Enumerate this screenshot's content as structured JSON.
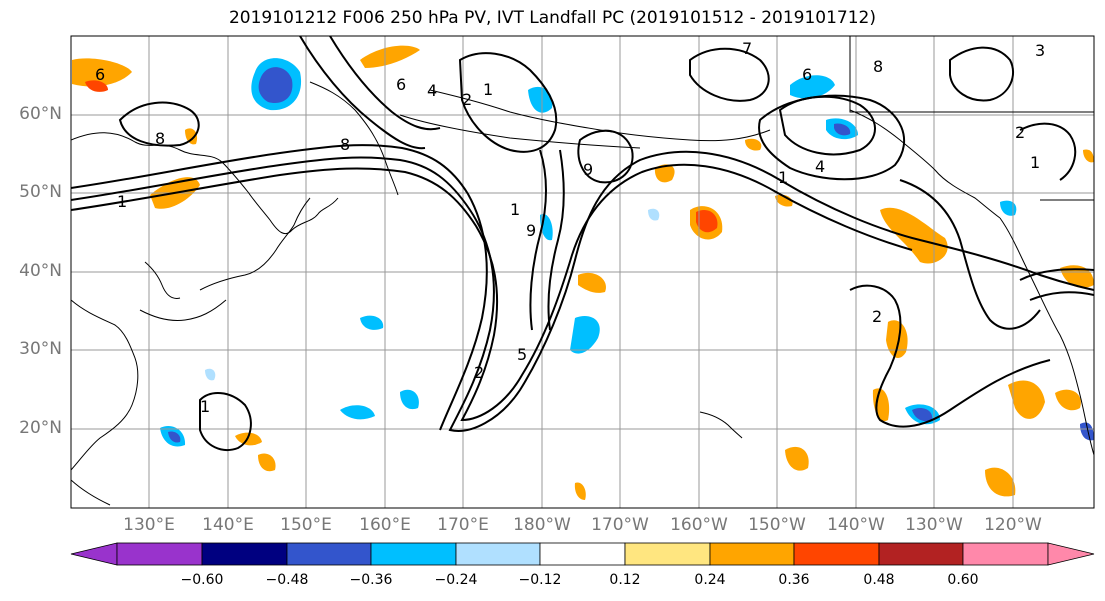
{
  "title": "2019101212 F006 250 hPa PV, IVT Landfall PC (2019101512 - 2019101712)",
  "latitude_labels": [
    "60°N",
    "50°N",
    "40°N",
    "30°N",
    "20°N"
  ],
  "longitude_labels": [
    "130°E",
    "140°E",
    "150°E",
    "160°E",
    "170°E",
    "180°W",
    "170°W",
    "160°W",
    "150°W",
    "140°W",
    "130°W",
    "120°W"
  ],
  "colorbar": {
    "ticks": [
      "−0.60",
      "−0.48",
      "−0.36",
      "−0.24",
      "−0.12",
      "0.12",
      "0.24",
      "0.36",
      "0.48",
      "0.60"
    ],
    "colors": [
      "#9933cc",
      "#000080",
      "#3355cc",
      "#00bfff",
      "#b0e0ff",
      "#ffffff",
      "#ffe680",
      "#ffa500",
      "#ff4500",
      "#b22222",
      "#ff88aa"
    ]
  },
  "contour_labels": [
    "8",
    "6",
    "4",
    "2",
    "1",
    "9",
    "5",
    "7",
    "3"
  ],
  "colors": {
    "grid": "#999999",
    "contour": "#000000",
    "coast": "#000000",
    "axis_label": "#777777"
  }
}
